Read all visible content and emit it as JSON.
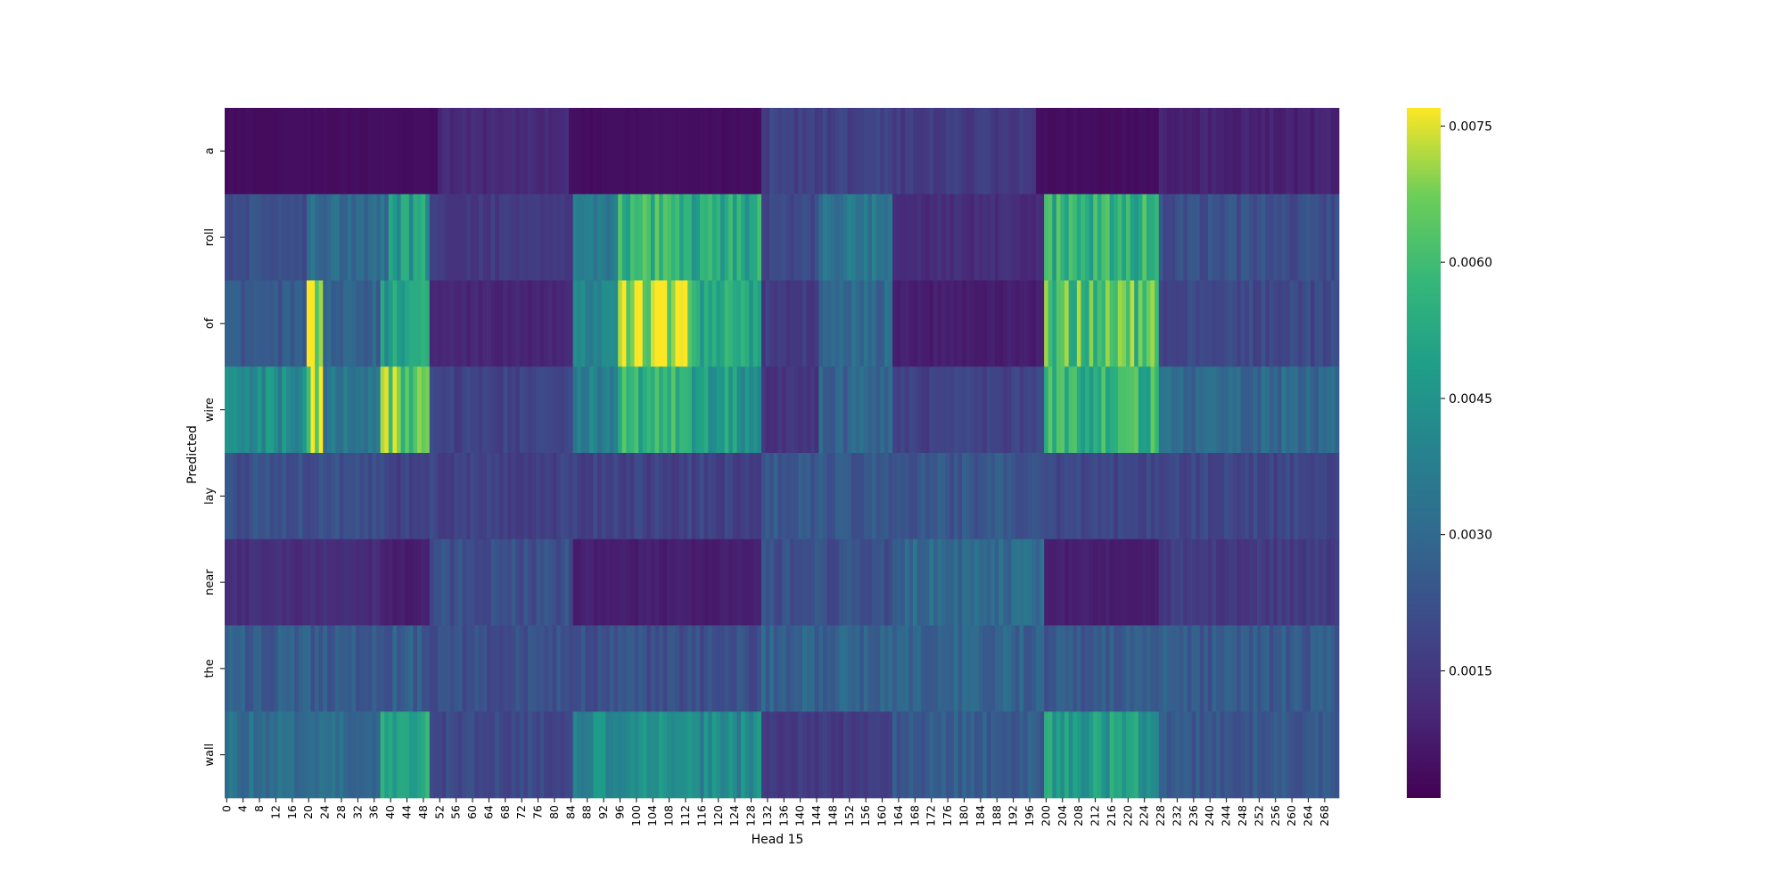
{
  "chart_data": {
    "type": "heatmap",
    "title": "",
    "xlabel": "Head 15",
    "ylabel": "Predicted",
    "rows": [
      "a",
      "roll",
      "of",
      "wire",
      "lay",
      "near",
      "the",
      "wall"
    ],
    "n_cols": 272,
    "x_tick_labels": [
      "0",
      "4",
      "8",
      "12",
      "16",
      "20",
      "24",
      "28",
      "32",
      "36",
      "40",
      "44",
      "48",
      "52",
      "56",
      "60",
      "64",
      "68",
      "72",
      "76",
      "80",
      "84",
      "88",
      "92",
      "96",
      "100",
      "104",
      "108",
      "112",
      "116",
      "120",
      "124",
      "128",
      "132",
      "136",
      "140",
      "144",
      "148",
      "152",
      "156",
      "160",
      "164",
      "168",
      "172",
      "176",
      "180",
      "184",
      "188",
      "192",
      "196",
      "200",
      "204",
      "208",
      "212",
      "216",
      "220",
      "224",
      "228",
      "232",
      "236",
      "240",
      "244",
      "248",
      "252",
      "256",
      "260",
      "264",
      "268"
    ],
    "colormap": "viridis",
    "value_range": [
      0.0001,
      0.0077
    ],
    "colorbar_ticks": [
      "0.0075",
      "0.0060",
      "0.0045",
      "0.0030",
      "0.0015"
    ],
    "colorbar_tick_values": [
      0.0075,
      0.006,
      0.0045,
      0.003,
      0.0015
    ],
    "row_profiles": [
      {
        "row": "a",
        "base": 0.001,
        "segments": [
          [
            0,
            0,
            52,
            0.0004
          ],
          [
            52,
            0,
            84,
            0.0011
          ],
          [
            84,
            0,
            131,
            0.0004
          ],
          [
            131,
            0,
            165,
            0.0018
          ],
          [
            165,
            0,
            198,
            0.0016
          ],
          [
            198,
            0,
            228,
            0.0004
          ],
          [
            228,
            0,
            272,
            0.0009
          ]
        ]
      },
      {
        "row": "roll",
        "base": 0.002,
        "segments": [
          [
            0,
            0,
            20,
            0.0022
          ],
          [
            20,
            0,
            40,
            0.0032
          ],
          [
            40,
            0,
            50,
            0.0048
          ],
          [
            50,
            0,
            85,
            0.0016
          ],
          [
            85,
            0,
            96,
            0.0038
          ],
          [
            96,
            0,
            114,
            0.0058
          ],
          [
            114,
            0,
            131,
            0.0052
          ],
          [
            131,
            0,
            145,
            0.002
          ],
          [
            145,
            0,
            163,
            0.0035
          ],
          [
            163,
            0,
            200,
            0.0012
          ],
          [
            200,
            0,
            228,
            0.0056
          ],
          [
            228,
            0,
            272,
            0.0022
          ]
        ]
      },
      {
        "row": "of",
        "base": 0.002,
        "segments": [
          [
            0,
            0,
            20,
            0.0025
          ],
          [
            20,
            0,
            24,
            0.007
          ],
          [
            24,
            0,
            38,
            0.0028
          ],
          [
            38,
            0,
            50,
            0.005
          ],
          [
            50,
            0,
            85,
            0.001
          ],
          [
            85,
            0,
            96,
            0.0038
          ],
          [
            96,
            0,
            114,
            0.0072
          ],
          [
            114,
            0,
            131,
            0.0052
          ],
          [
            131,
            0,
            145,
            0.0016
          ],
          [
            145,
            0,
            163,
            0.003
          ],
          [
            163,
            0,
            200,
            0.0008
          ],
          [
            200,
            0,
            228,
            0.0062
          ],
          [
            228,
            0,
            272,
            0.002
          ]
        ]
      },
      {
        "row": "wire",
        "base": 0.0025,
        "segments": [
          [
            0,
            0,
            20,
            0.0042
          ],
          [
            20,
            0,
            24,
            0.0072
          ],
          [
            24,
            0,
            38,
            0.0035
          ],
          [
            38,
            0,
            50,
            0.0064
          ],
          [
            50,
            0,
            85,
            0.0018
          ],
          [
            85,
            0,
            96,
            0.004
          ],
          [
            96,
            0,
            114,
            0.0056
          ],
          [
            114,
            0,
            131,
            0.0048
          ],
          [
            131,
            0,
            145,
            0.0014
          ],
          [
            145,
            0,
            163,
            0.0028
          ],
          [
            163,
            0,
            200,
            0.0018
          ],
          [
            200,
            0,
            228,
            0.0056
          ],
          [
            228,
            0,
            272,
            0.003
          ]
        ]
      },
      {
        "row": "lay",
        "base": 0.002,
        "segments": [
          [
            0,
            0,
            40,
            0.0022
          ],
          [
            40,
            0,
            50,
            0.0018
          ],
          [
            50,
            0,
            131,
            0.0018
          ],
          [
            131,
            0,
            200,
            0.0024
          ],
          [
            200,
            0,
            272,
            0.0019
          ]
        ]
      },
      {
        "row": "near",
        "base": 0.0015,
        "segments": [
          [
            0,
            0,
            38,
            0.0012
          ],
          [
            38,
            0,
            50,
            0.0008
          ],
          [
            50,
            0,
            85,
            0.0022
          ],
          [
            85,
            0,
            131,
            0.0008
          ],
          [
            131,
            0,
            163,
            0.0022
          ],
          [
            163,
            0,
            200,
            0.003
          ],
          [
            200,
            0,
            228,
            0.0008
          ],
          [
            228,
            0,
            272,
            0.0016
          ]
        ]
      },
      {
        "row": "the",
        "base": 0.0022,
        "segments": [
          [
            0,
            0,
            50,
            0.0026
          ],
          [
            50,
            0,
            131,
            0.0022
          ],
          [
            131,
            0,
            200,
            0.0028
          ],
          [
            200,
            0,
            272,
            0.0025
          ]
        ]
      },
      {
        "row": "wall",
        "base": 0.0022,
        "segments": [
          [
            0,
            0,
            38,
            0.0032
          ],
          [
            38,
            0,
            50,
            0.005
          ],
          [
            50,
            0,
            85,
            0.002
          ],
          [
            85,
            0,
            131,
            0.0042
          ],
          [
            131,
            0,
            163,
            0.0016
          ],
          [
            163,
            0,
            200,
            0.0026
          ],
          [
            200,
            0,
            228,
            0.0048
          ],
          [
            228,
            0,
            272,
            0.0024
          ]
        ]
      }
    ]
  }
}
